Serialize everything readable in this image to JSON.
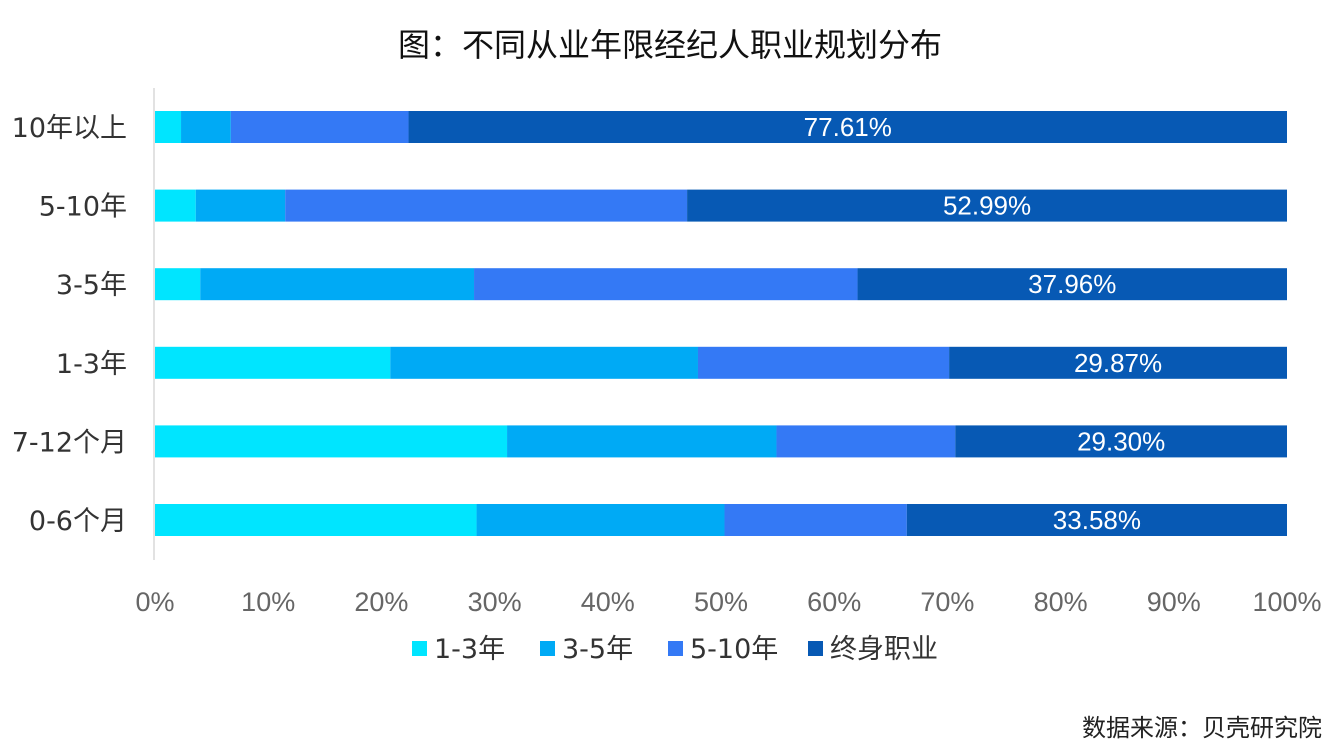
{
  "chart_data": {
    "type": "bar",
    "orientation": "horizontal",
    "stacked": "percent",
    "title": "图：不同从业年限经纪人职业规划分布",
    "source": "数据来源：贝壳研究院",
    "categories": [
      "10年以上",
      "5-10年",
      "3-5年",
      "1-3年",
      "7-12个月",
      "0-6个月"
    ],
    "series": [
      {
        "name": "1-3年",
        "color": "#00E5FF",
        "values": [
          2.3,
          3.6,
          4.0,
          20.8,
          31.1,
          28.4
        ]
      },
      {
        "name": "3-5年",
        "color": "#00AAF5",
        "values": [
          4.4,
          7.9,
          24.2,
          27.2,
          23.8,
          21.9
        ]
      },
      {
        "name": "5-10年",
        "color": "#3479F5",
        "values": [
          15.7,
          35.5,
          33.9,
          22.2,
          15.8,
          16.1
        ]
      },
      {
        "name": "终身职业",
        "color": "#0759B4",
        "values": [
          77.61,
          52.99,
          37.96,
          29.87,
          29.3,
          33.58
        ]
      }
    ],
    "data_labels": [
      "77.61%",
      "52.99%",
      "37.96%",
      "29.87%",
      "29.30%",
      "33.58%"
    ],
    "xlim": [
      0,
      100
    ],
    "x_ticks": [
      "0%",
      "10%",
      "20%",
      "30%",
      "40%",
      "50%",
      "60%",
      "70%",
      "80%",
      "90%",
      "100%"
    ],
    "grid": false,
    "legend_position": "bottom"
  }
}
